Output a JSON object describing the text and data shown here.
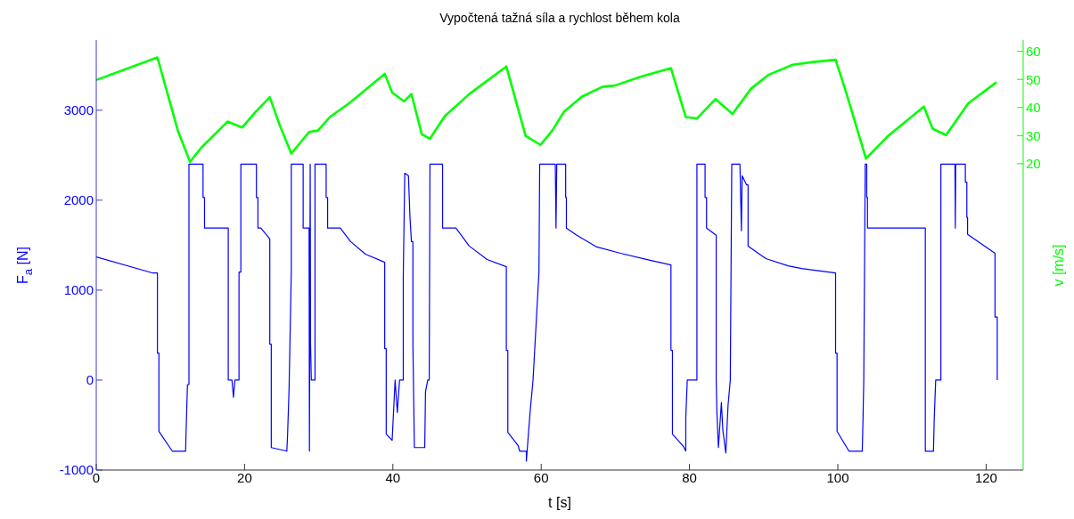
{
  "chart_data": {
    "type": "line",
    "title": "Vypočtená tažná síla a rychlost během kola",
    "xlabel": "t [s]",
    "ylabel": "F$_{a}$ [N]",
    "y2label": "v [m/s]",
    "xlim": [
      0,
      125
    ],
    "xticks": [
      0,
      20,
      40,
      60,
      80,
      100,
      120
    ],
    "ylim": [
      -1000,
      3780
    ],
    "yticks": [
      -1000,
      0,
      1000,
      2000,
      3000
    ],
    "y2lim": [
      -89,
      64
    ],
    "y2ticks": [
      20,
      30,
      40,
      50,
      60
    ],
    "grid": false,
    "marker": "none",
    "line_style": "solid",
    "series": [
      {
        "color": "#0000ff",
        "x": [
          0,
          7.65,
          8.25,
          8.25,
          8.45,
          8.45,
          10.25,
          12.05,
          12.1,
          12.3,
          12.5,
          12.5,
          14.4,
          14.4,
          14.6,
          14.6,
          17.8,
          17.8,
          18.3,
          18.5,
          18.7,
          19.25,
          19.25,
          19.5,
          19.5,
          21.6,
          21.6,
          21.8,
          21.8,
          22.2,
          23.4,
          23.4,
          23.6,
          23.6,
          25.7,
          25.8,
          26.0,
          26.3,
          26.3,
          27.9,
          27.9,
          28.7,
          28.75,
          28.85,
          28.9,
          29.0,
          29.5,
          29.5,
          31.0,
          31.0,
          31.2,
          31.2,
          32.9,
          34.3,
          36.3,
          38.9,
          38.9,
          39.1,
          39.1,
          39.9,
          40.3,
          40.6,
          40.9,
          41.4,
          41.4,
          41.6,
          42.1,
          42.3,
          42.5,
          42.7,
          42.7,
          42.9,
          44.3,
          44.4,
          44.7,
          44.9,
          45.0,
          46.7,
          46.7,
          48.5,
          50.3,
          52.7,
          55.3,
          55.3,
          55.5,
          55.5,
          56.9,
          57.1,
          58.0,
          58.0,
          58.5,
          58.9,
          59.7,
          59.8,
          61.9,
          62.0,
          62.1,
          63.3,
          63.3,
          63.4,
          63.4,
          64.8,
          67.5,
          70.7,
          74.3,
          77.5,
          77.5,
          77.7,
          77.7,
          79.2,
          79.5,
          79.5,
          79.7,
          81.0,
          81.0,
          82.1,
          82.1,
          82.3,
          82.3,
          83.6,
          83.6,
          83.7,
          83.9,
          84.3,
          84.5,
          84.9,
          85.2,
          85.5,
          85.7,
          86.8,
          87.0,
          87.1,
          87.7,
          87.9,
          87.9,
          90.3,
          93.3,
          95.1,
          99.7,
          99.7,
          99.9,
          99.9,
          101.5,
          103.3,
          103.4,
          103.5,
          103.7,
          103.9,
          103.9,
          104.0,
          104.0,
          111.8,
          111.8,
          112.9,
          113.0,
          113.2,
          113.9,
          113.9,
          115.8,
          115.85,
          115.9,
          117.2,
          117.2,
          117.4,
          117.4,
          117.5,
          117.5,
          121.2,
          121.2,
          121.5,
          121.5
        ],
        "values": [
          1370,
          1190,
          1190,
          300,
          300,
          -570,
          -790,
          -790,
          -610,
          -50,
          -50,
          2400,
          2400,
          2030,
          2030,
          1690,
          1690,
          0,
          0,
          -190,
          0,
          0,
          1200,
          1200,
          2400,
          2400,
          2030,
          2030,
          1690,
          1690,
          1570,
          400,
          400,
          -750,
          -790,
          -610,
          -100,
          1200,
          2400,
          2400,
          1690,
          1690,
          -790,
          2400,
          400,
          0,
          0,
          2400,
          2400,
          2030,
          2030,
          1690,
          1690,
          1540,
          1400,
          1310,
          350,
          350,
          -600,
          -670,
          0,
          -360,
          0,
          0,
          1140,
          2300,
          2270,
          1820,
          1540,
          1540,
          400,
          -750,
          -750,
          -130,
          0,
          0,
          2400,
          2400,
          1690,
          1690,
          1490,
          1340,
          1260,
          330,
          330,
          -580,
          -730,
          -790,
          -790,
          -900,
          -360,
          0,
          1200,
          2400,
          2400,
          1690,
          2400,
          2400,
          2030,
          2030,
          1690,
          1610,
          1480,
          1410,
          1340,
          1280,
          330,
          330,
          -600,
          -740,
          -790,
          -420,
          0,
          0,
          2400,
          2400,
          2030,
          2030,
          1690,
          1610,
          0,
          -370,
          -750,
          -250,
          -560,
          -810,
          -280,
          0,
          2400,
          2400,
          1660,
          2270,
          2170,
          2170,
          1490,
          1350,
          1270,
          1240,
          1190,
          300,
          300,
          -570,
          -790,
          -790,
          -420,
          0,
          2400,
          2400,
          2030,
          2030,
          1690,
          1690,
          -790,
          -790,
          -440,
          0,
          0,
          2400,
          2400,
          1690,
          2400,
          2400,
          2200,
          2200,
          1810,
          1810,
          1620,
          1410,
          700,
          700,
          0
        ]
      },
      {
        "color": "#00ff00",
        "axis": "y2",
        "x": [
          0,
          8.25,
          11.0,
          12.65,
          14.1,
          17.7,
          19.7,
          21.3,
          23.4,
          24.7,
          26.3,
          28.7,
          29.9,
          31.5,
          34.3,
          38.9,
          39.9,
          41.5,
          42.5,
          43.9,
          45.0,
          47.0,
          50.3,
          55.3,
          57.9,
          59.9,
          61.5,
          63.1,
          65.5,
          68.3,
          69.9,
          73.5,
          77.5,
          79.5,
          81.0,
          83.5,
          85.8,
          88.3,
          90.7,
          93.9,
          96.7,
          99.7,
          101.1,
          103.8,
          106.7,
          111.6,
          112.8,
          114.6,
          117.6,
          121.4
        ],
        "values": [
          49.8,
          57.8,
          31.8,
          20.7,
          25.5,
          35.0,
          32.9,
          37.9,
          43.7,
          34.0,
          23.6,
          31.3,
          31.8,
          36.6,
          41.9,
          52.0,
          45.3,
          42.2,
          44.8,
          30.5,
          28.9,
          36.9,
          44.8,
          54.6,
          29.9,
          26.7,
          31.8,
          38.6,
          43.9,
          47.4,
          47.8,
          51.0,
          54.0,
          36.6,
          36.1,
          43.0,
          37.7,
          46.7,
          51.7,
          55.2,
          56.2,
          57.0,
          45.6,
          21.8,
          29.7,
          40.3,
          32.4,
          30.2,
          41.5,
          49.0
        ]
      }
    ]
  }
}
